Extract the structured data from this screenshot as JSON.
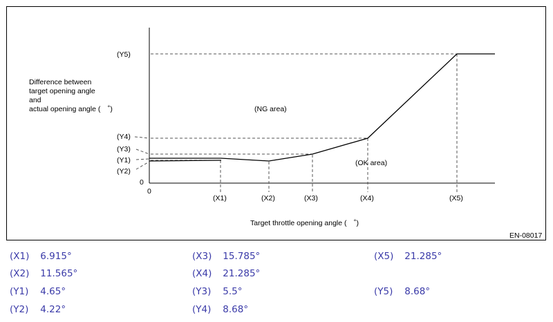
{
  "diagram": {
    "y_axis_label": [
      "Difference between",
      "target opening angle",
      "and",
      "actual opening angle (　˚)"
    ],
    "x_axis_label": "Target throttle opening angle (　˚)",
    "origin_x": "0",
    "origin_y": "0",
    "ng_area": "(NG area)",
    "ok_area": "(OK area)",
    "code": "EN-08017",
    "x_ticks": [
      "(X1)",
      "(X2)",
      "(X3)",
      "(X4)",
      "(X5)"
    ],
    "y_ticks": [
      "(Y5)",
      "(Y4)",
      "(Y3)",
      "(Y1)",
      "(Y2)"
    ]
  },
  "legend": [
    {
      "key": "(X1)",
      "value": "6.915°"
    },
    {
      "key": "(X3)",
      "value": "15.785°"
    },
    {
      "key": "(X5)",
      "value": "21.285°"
    },
    {
      "key": "(X2)",
      "value": "11.565°"
    },
    {
      "key": "(X4)",
      "value": "21.285°"
    },
    {
      "key": "(Y1)",
      "value": "4.65°"
    },
    {
      "key": "(Y3)",
      "value": "5.5°"
    },
    {
      "key": "(Y5)",
      "value": "8.68°"
    },
    {
      "key": "(Y2)",
      "value": "4.22°"
    },
    {
      "key": "(Y4)",
      "value": "8.68°"
    }
  ]
}
